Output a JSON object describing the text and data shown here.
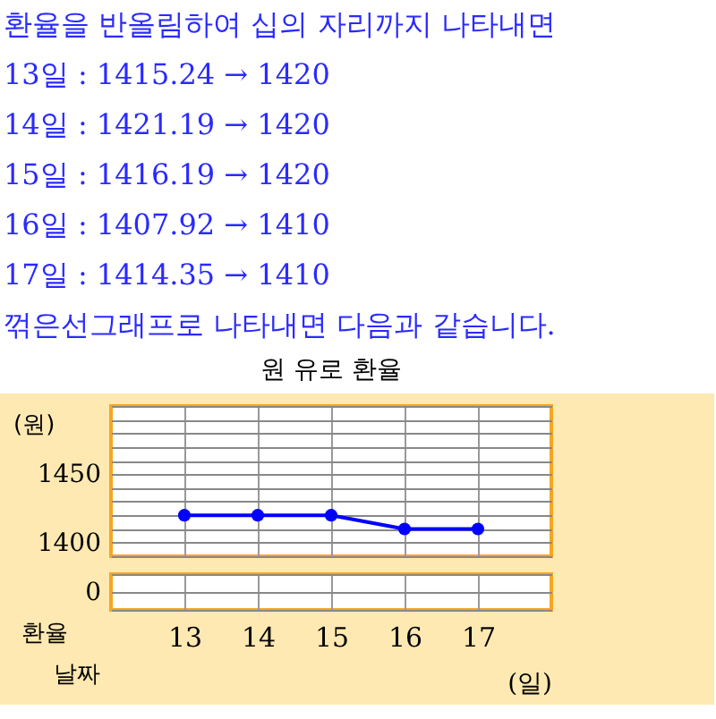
{
  "chart_data": {
    "type": "line",
    "title": "원 유로 환율",
    "annotations": [
      "환율을 반올림하여 십의 자리까지 나타내면",
      "13일 : 1415.24 → 1420",
      "14일 : 1421.19 → 1420",
      "15일 : 1416.19 → 1420",
      "16일 : 1407.92 → 1410",
      "17일 : 1414.35 → 1410",
      "꺾은선그래프로 나타내면 다음과 같습니다.",
      "0",
      "환율",
      "날짜"
    ],
    "ylabel": "(원)",
    "xlabel": "(일)",
    "categories": [
      "13",
      "14",
      "15",
      "16",
      "17"
    ],
    "series": [
      {
        "color": "#0000ff",
        "values": [
          1420,
          1420,
          1420,
          1410,
          1410
        ]
      }
    ],
    "ylim": [
      1390,
      1500
    ],
    "yticks": [
      {
        "value": 1390,
        "label": null
      },
      1400,
      {
        "value": 1410,
        "label": null
      },
      {
        "value": 1420,
        "label": null
      },
      {
        "value": 1430,
        "label": null
      },
      {
        "value": 1440,
        "label": null
      },
      1450,
      {
        "value": 1460,
        "label": null
      },
      {
        "value": 1470,
        "label": null
      },
      {
        "value": 1480,
        "label": null
      },
      {
        "value": 1490,
        "label": null
      },
      {
        "value": 1500,
        "label": null
      }
    ],
    "grid": true,
    "marker": "circle",
    "line_style": "solid"
  }
}
